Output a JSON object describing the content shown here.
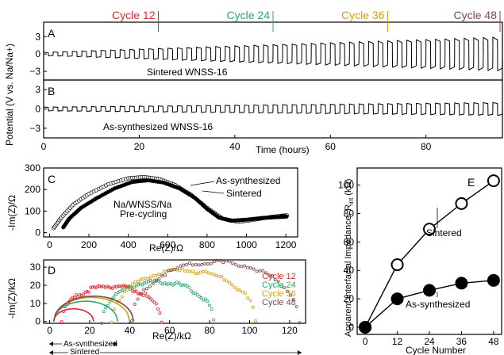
{
  "colors": {
    "cycle12": "#e8262d",
    "cycle24": "#2aa86b",
    "cycle36": "#d4a017",
    "cycle48": "#7b4a45",
    "black": "#000000"
  },
  "chart_data": [
    {
      "id": "A",
      "type": "line",
      "panel_label": "A",
      "title": "",
      "ylabel": "Potential (V vs. Na/Na+)",
      "xlabel": "Time (hours)",
      "xlim": [
        0,
        96
      ],
      "ylim": [
        -4.5,
        5.5
      ],
      "xticks": [
        0,
        20,
        40,
        60,
        80
      ],
      "yticks": [
        3,
        0,
        -3
      ],
      "cycle_markers": [
        {
          "label": "Cycle 12",
          "x": 24
        },
        {
          "label": "Cycle 24",
          "x": 48
        },
        {
          "label": "Cycle 36",
          "x": 72
        },
        {
          "label": "Cycle 48",
          "x": 96
        }
      ],
      "annotation": "Sintered WNSS-16",
      "series": [
        {
          "amp_start": 0.3,
          "amp_end": 2.9,
          "cycles": 48,
          "period_h": 2
        }
      ]
    },
    {
      "id": "B",
      "type": "line",
      "panel_label": "B",
      "title": "",
      "ylabel": "",
      "xlabel": "Time (hours)",
      "xlim": [
        0,
        96
      ],
      "ylim": [
        -4.5,
        4.5
      ],
      "xticks": [
        0,
        20,
        40,
        60,
        80
      ],
      "xtick_labels": [
        "0",
        "20",
        "40",
        "60",
        "80"
      ],
      "yticks": [
        3,
        0,
        -3
      ],
      "annotation": "As-synthesized WNSS-16",
      "series": [
        {
          "amp_start": 0.3,
          "amp_end": 1.0,
          "cycles": 48,
          "period_h": 2
        }
      ]
    },
    {
      "id": "C",
      "type": "scatter",
      "panel_label": "C",
      "title": "",
      "xlabel": "Re(Z)/Ω",
      "ylabel": "-Im(Z)/Ω",
      "xlim": [
        -30,
        1260
      ],
      "ylim": [
        -20,
        300
      ],
      "xticks": [
        0,
        200,
        400,
        600,
        800,
        1000,
        1200
      ],
      "yticks": [
        0,
        100,
        200,
        300
      ],
      "annotation_lines": [
        "Na/WNSS/Na",
        "Pre-cycling"
      ],
      "series": [
        {
          "name": "As-synthesized",
          "points": [
            [
              20,
              20
            ],
            [
              60,
              70
            ],
            [
              120,
              130
            ],
            [
              200,
              180
            ],
            [
              300,
              225
            ],
            [
              400,
              252
            ],
            [
              480,
              258
            ],
            [
              560,
              248
            ],
            [
              640,
              220
            ],
            [
              720,
              175
            ],
            [
              800,
              115
            ],
            [
              880,
              65
            ],
            [
              960,
              50
            ],
            [
              1040,
              60
            ],
            [
              1120,
              72
            ],
            [
              1180,
              78
            ],
            [
              1210,
              80
            ]
          ]
        },
        {
          "name": "Sintered",
          "points": [
            [
              70,
              25
            ],
            [
              100,
              65
            ],
            [
              160,
              115
            ],
            [
              240,
              160
            ],
            [
              330,
              205
            ],
            [
              420,
              235
            ],
            [
              500,
              243
            ],
            [
              580,
              232
            ],
            [
              660,
              205
            ],
            [
              740,
              160
            ],
            [
              800,
              110
            ],
            [
              860,
              70
            ],
            [
              920,
              55
            ],
            [
              1000,
              60
            ],
            [
              1080,
              68
            ],
            [
              1160,
              72
            ],
            [
              1210,
              75
            ]
          ]
        }
      ]
    },
    {
      "id": "D",
      "type": "scatter",
      "panel_label": "D",
      "title": "",
      "xlabel": "Re(Z)/kΩ",
      "ylabel": "-Im(Z)/kΩ",
      "xlim": [
        -3,
        128
      ],
      "ylim": [
        -1,
        34
      ],
      "xticks": [
        0,
        20,
        40,
        60,
        80,
        100,
        120
      ],
      "yticks": [
        0,
        10,
        20,
        30
      ],
      "legend": [
        "Cycle 12",
        "Cycle 24",
        "Cycle 36",
        "Cycle 48"
      ],
      "range_labels": [
        "As-synthesized",
        "Sintered"
      ],
      "series": [
        {
          "name": "Cycle 12",
          "group": "sintered",
          "center": 31,
          "radius": 25
        },
        {
          "name": "Cycle 24",
          "group": "sintered",
          "center": 54,
          "radius": 28
        },
        {
          "name": "Cycle 36",
          "group": "sintered",
          "center": 67,
          "radius": 36
        },
        {
          "name": "Cycle 48",
          "group": "sintered",
          "center": 83,
          "radius": 42
        },
        {
          "name": "Cycle 12",
          "group": "as-synthesized",
          "center": 12,
          "radius": 10
        },
        {
          "name": "Cycle 24",
          "group": "as-synthesized",
          "center": 18,
          "radius": 16
        },
        {
          "name": "Cycle 36",
          "group": "as-synthesized",
          "center": 21,
          "radius": 19
        },
        {
          "name": "Cycle 48",
          "group": "as-synthesized",
          "center": 22,
          "radius": 20
        }
      ]
    },
    {
      "id": "E",
      "type": "line",
      "panel_label": "E",
      "title": "",
      "xlabel": "Cycle Number",
      "ylabel": "Apparent Interfacial Impedance, R",
      "ylabel_sub": "int",
      "ylabel_unit": "(kΩ)",
      "xlim": [
        -3,
        51
      ],
      "ylim": [
        -5,
        112
      ],
      "xticks": [
        0,
        12,
        24,
        36,
        48
      ],
      "yticks": [
        0,
        20,
        40,
        60,
        80,
        100
      ],
      "categories": [
        0,
        12,
        24,
        36,
        48
      ],
      "series": [
        {
          "name": "Sintered",
          "values": [
            0,
            44,
            69,
            87,
            103
          ],
          "marker": "open"
        },
        {
          "name": "As-synthesized",
          "values": [
            0,
            20,
            26,
            31,
            33
          ],
          "marker": "filled"
        }
      ]
    }
  ]
}
